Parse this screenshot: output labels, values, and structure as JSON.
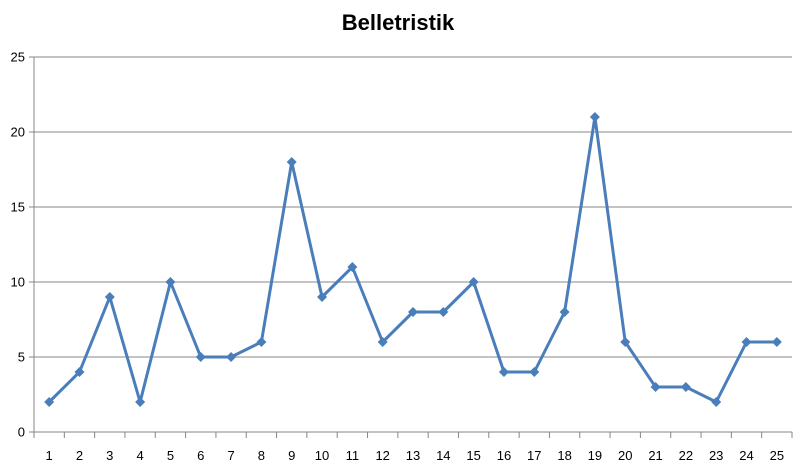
{
  "chart_data": {
    "type": "line",
    "title": "Belletristik",
    "xlabel": "",
    "ylabel": "",
    "categories": [
      "1",
      "2",
      "3",
      "4",
      "5",
      "6",
      "7",
      "8",
      "9",
      "10",
      "11",
      "12",
      "13",
      "14",
      "15",
      "16",
      "17",
      "18",
      "19",
      "20",
      "21",
      "22",
      "23",
      "24",
      "25"
    ],
    "series": [
      {
        "values": [
          2,
          4,
          9,
          2,
          10,
          5,
          5,
          6,
          18,
          9,
          11,
          6,
          8,
          8,
          10,
          4,
          4,
          8,
          21,
          6,
          3,
          3,
          2,
          6,
          6
        ]
      }
    ],
    "ylim": [
      0,
      25
    ],
    "yticks": [
      0,
      5,
      10,
      15,
      20,
      25
    ],
    "grid": true,
    "legend": "none",
    "colors": {
      "line": "#4a7ebb",
      "marker": "#4a7ebb",
      "grid": "#878787",
      "axis": "#878787"
    }
  }
}
